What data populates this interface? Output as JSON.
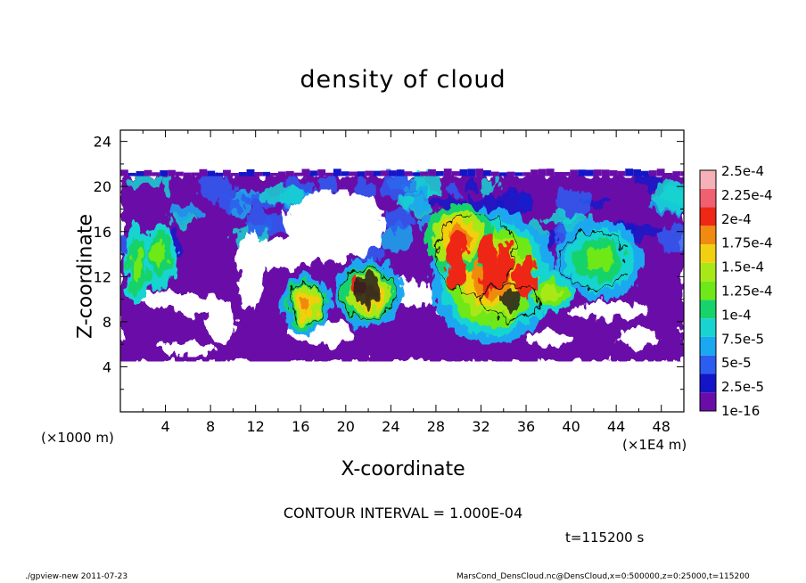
{
  "chart_data": {
    "type": "heatmap",
    "title": "density of cloud",
    "xlabel": "X-coordinate",
    "ylabel": "Z-coordinate",
    "x_unit": "(×1E4 m)",
    "y_unit": "(×1000 m)",
    "xlim": [
      0,
      50
    ],
    "ylim": [
      0,
      25
    ],
    "x_ticks": [
      4,
      8,
      12,
      16,
      20,
      24,
      28,
      32,
      36,
      40,
      44,
      48
    ],
    "y_ticks": [
      4,
      8,
      12,
      16,
      20,
      24
    ],
    "colorbar": {
      "labels": [
        "1e-16",
        "2.5e-5",
        "5e-5",
        "7.5e-5",
        "1e-4",
        "1.25e-4",
        "1.5e-4",
        "1.75e-4",
        "2e-4",
        "2.25e-4",
        "2.5e-4"
      ],
      "colors": [
        "#6a0da8",
        "#1414c8",
        "#2d5cf0",
        "#1aa8f0",
        "#18d4d0",
        "#18d26a",
        "#6ee818",
        "#a8e818",
        "#f0d010",
        "#f08a10",
        "#ee2814",
        "#f06070",
        "#f6b0b8"
      ]
    },
    "cloud_z_range": [
      4.5,
      21
    ],
    "colormap_note": "",
    "annotations": {
      "contour_interval": "CONTOUR INTERVAL = 1.000E-04",
      "time": "t=115200 s"
    }
  },
  "footer": {
    "left": "./gpview-new   2011-07-23",
    "right": "MarsCond_DensCloud.nc@DensCloud,x=0:500000,z=0:25000,t=115200"
  }
}
